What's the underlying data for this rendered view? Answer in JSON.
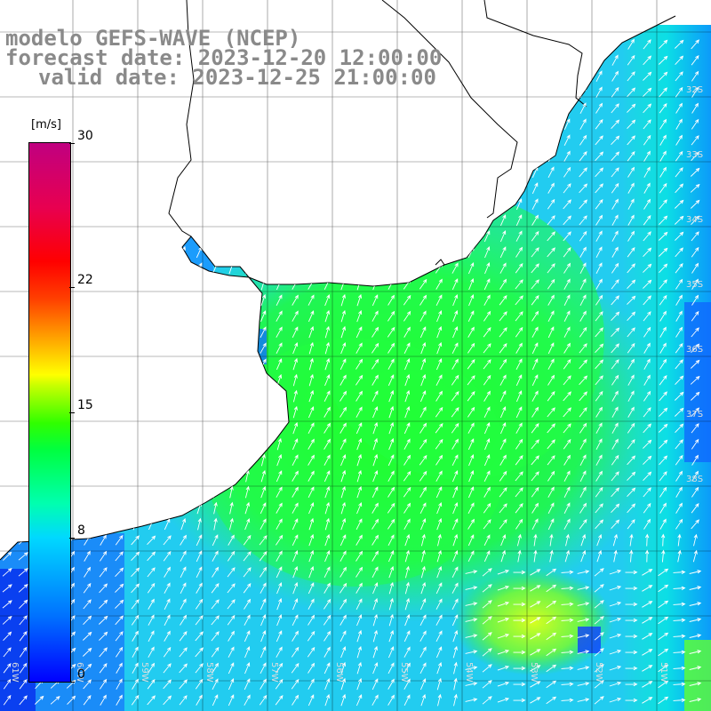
{
  "title": {
    "model": "modelo GEFS-WAVE (NCEP)",
    "forecast": "forecast date: 2023-12-20 12:00:00",
    "valid": "valid date: 2023-12-25 21:00:00"
  },
  "colorbar": {
    "unit": "[m/s]",
    "ticks": [
      {
        "label": "0",
        "value": 0
      },
      {
        "label": "8",
        "value": 8
      },
      {
        "label": "15",
        "value": 15
      },
      {
        "label": "22",
        "value": 22
      },
      {
        "label": "30",
        "value": 30
      }
    ],
    "range": [
      0,
      30
    ]
  },
  "grid": {
    "lon_labels": [
      "61W",
      "60W",
      "59W",
      "58W",
      "57W",
      "56W",
      "55W",
      "54W",
      "53W",
      "52W",
      "51W"
    ],
    "lat_labels": [
      "32S",
      "33S",
      "34S",
      "35S",
      "36S",
      "37S",
      "38S"
    ]
  },
  "colors": {
    "low": "#0000ff",
    "mid": "#00ff40",
    "high": "#c00080",
    "title": "#8a8a8a"
  }
}
